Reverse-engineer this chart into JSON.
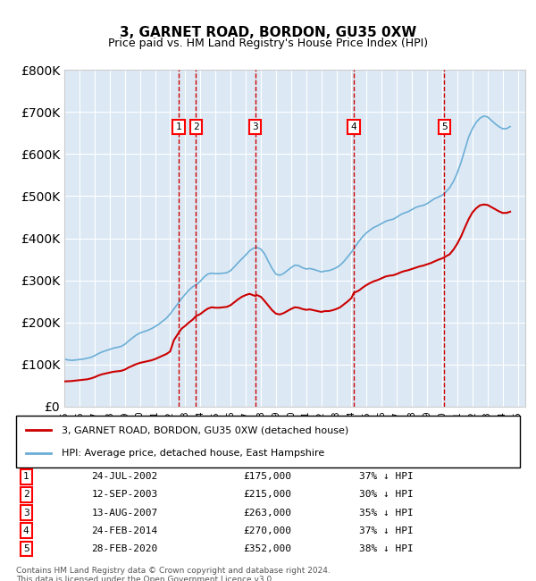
{
  "title": "3, GARNET ROAD, BORDON, GU35 0XW",
  "subtitle": "Price paid vs. HM Land Registry's House Price Index (HPI)",
  "ylabel_ticks": [
    "£0",
    "£100K",
    "£200K",
    "£300K",
    "£400K",
    "£500K",
    "£600K",
    "£700K",
    "£800K"
  ],
  "ytick_values": [
    0,
    100000,
    200000,
    300000,
    400000,
    500000,
    600000,
    700000,
    800000
  ],
  "ylim": [
    0,
    800000
  ],
  "xlim_start": 1995.0,
  "xlim_end": 2025.5,
  "background_color": "#dce9f5",
  "plot_bg": "#dce9f5",
  "hpi_color": "#6baed6",
  "price_color": "#cc0000",
  "vline_color": "#cc0000",
  "sales": [
    {
      "num": 1,
      "date": "24-JUL-2002",
      "year": 2002.56,
      "price": 175000,
      "label": "£175,000",
      "pct": "37% ↓ HPI"
    },
    {
      "num": 2,
      "date": "12-SEP-2003",
      "year": 2003.71,
      "price": 215000,
      "label": "£215,000",
      "pct": "30% ↓ HPI"
    },
    {
      "num": 3,
      "date": "13-AUG-2007",
      "year": 2007.62,
      "price": 263000,
      "label": "£263,000",
      "pct": "35% ↓ HPI"
    },
    {
      "num": 4,
      "date": "24-FEB-2014",
      "year": 2014.15,
      "price": 270000,
      "label": "£270,000",
      "pct": "37% ↓ HPI"
    },
    {
      "num": 5,
      "date": "28-FEB-2020",
      "year": 2020.15,
      "price": 352000,
      "label": "£352,000",
      "pct": "38% ↓ HPI"
    }
  ],
  "legend_red_label": "3, GARNET ROAD, BORDON, GU35 0XW (detached house)",
  "legend_blue_label": "HPI: Average price, detached house, East Hampshire",
  "footer": "Contains HM Land Registry data © Crown copyright and database right 2024.\nThis data is licensed under the Open Government Licence v3.0.",
  "hpi_data_x": [
    1995.0,
    1995.25,
    1995.5,
    1995.75,
    1996.0,
    1996.25,
    1996.5,
    1996.75,
    1997.0,
    1997.25,
    1997.5,
    1997.75,
    1998.0,
    1998.25,
    1998.5,
    1998.75,
    1999.0,
    1999.25,
    1999.5,
    1999.75,
    2000.0,
    2000.25,
    2000.5,
    2000.75,
    2001.0,
    2001.25,
    2001.5,
    2001.75,
    2002.0,
    2002.25,
    2002.5,
    2002.75,
    2003.0,
    2003.25,
    2003.5,
    2003.75,
    2004.0,
    2004.25,
    2004.5,
    2004.75,
    2005.0,
    2005.25,
    2005.5,
    2005.75,
    2006.0,
    2006.25,
    2006.5,
    2006.75,
    2007.0,
    2007.25,
    2007.5,
    2007.75,
    2008.0,
    2008.25,
    2008.5,
    2008.75,
    2009.0,
    2009.25,
    2009.5,
    2009.75,
    2010.0,
    2010.25,
    2010.5,
    2010.75,
    2011.0,
    2011.25,
    2011.5,
    2011.75,
    2012.0,
    2012.25,
    2012.5,
    2012.75,
    2013.0,
    2013.25,
    2013.5,
    2013.75,
    2014.0,
    2014.25,
    2014.5,
    2014.75,
    2015.0,
    2015.25,
    2015.5,
    2015.75,
    2016.0,
    2016.25,
    2016.5,
    2016.75,
    2017.0,
    2017.25,
    2017.5,
    2017.75,
    2018.0,
    2018.25,
    2018.5,
    2018.75,
    2019.0,
    2019.25,
    2019.5,
    2019.75,
    2020.0,
    2020.25,
    2020.5,
    2020.75,
    2021.0,
    2021.25,
    2021.5,
    2021.75,
    2022.0,
    2022.25,
    2022.5,
    2022.75,
    2023.0,
    2023.25,
    2023.5,
    2023.75,
    2024.0,
    2024.25,
    2024.5
  ],
  "hpi_data_y": [
    113000,
    111000,
    110000,
    111000,
    112000,
    113000,
    115000,
    117000,
    121000,
    126000,
    130000,
    133000,
    136000,
    139000,
    141000,
    143000,
    148000,
    156000,
    163000,
    170000,
    175000,
    178000,
    181000,
    185000,
    190000,
    196000,
    203000,
    210000,
    220000,
    232000,
    244000,
    256000,
    267000,
    277000,
    285000,
    290000,
    298000,
    308000,
    315000,
    317000,
    316000,
    316000,
    317000,
    318000,
    323000,
    332000,
    342000,
    351000,
    360000,
    370000,
    376000,
    378000,
    374000,
    363000,
    345000,
    328000,
    315000,
    312000,
    316000,
    323000,
    330000,
    336000,
    335000,
    330000,
    327000,
    328000,
    326000,
    323000,
    320000,
    322000,
    323000,
    326000,
    330000,
    336000,
    345000,
    356000,
    367000,
    380000,
    393000,
    404000,
    413000,
    420000,
    426000,
    430000,
    435000,
    440000,
    443000,
    445000,
    450000,
    456000,
    460000,
    463000,
    468000,
    473000,
    476000,
    478000,
    482000,
    488000,
    494000,
    498000,
    502000,
    510000,
    520000,
    535000,
    555000,
    580000,
    610000,
    640000,
    660000,
    675000,
    685000,
    690000,
    688000,
    680000,
    672000,
    665000,
    660000,
    660000,
    665000
  ],
  "price_data_x": [
    1995.0,
    1995.25,
    1995.5,
    1995.75,
    1996.0,
    1996.25,
    1996.5,
    1996.75,
    1997.0,
    1997.25,
    1997.5,
    1997.75,
    1998.0,
    1998.25,
    1998.5,
    1998.75,
    1999.0,
    1999.25,
    1999.5,
    1999.75,
    2000.0,
    2000.25,
    2000.5,
    2000.75,
    2001.0,
    2001.25,
    2001.5,
    2001.75,
    2002.0,
    2002.25,
    2002.56,
    2002.75,
    2003.0,
    2003.25,
    2003.5,
    2003.71,
    2004.0,
    2004.25,
    2004.5,
    2004.75,
    2005.0,
    2005.25,
    2005.5,
    2005.75,
    2006.0,
    2006.25,
    2006.5,
    2006.75,
    2007.0,
    2007.25,
    2007.62,
    2007.75,
    2008.0,
    2008.25,
    2008.5,
    2008.75,
    2009.0,
    2009.25,
    2009.5,
    2009.75,
    2010.0,
    2010.25,
    2010.5,
    2010.75,
    2011.0,
    2011.25,
    2011.5,
    2011.75,
    2012.0,
    2012.25,
    2012.5,
    2012.75,
    2013.0,
    2013.25,
    2013.5,
    2013.75,
    2014.0,
    2014.15,
    2014.5,
    2014.75,
    2015.0,
    2015.25,
    2015.5,
    2015.75,
    2016.0,
    2016.25,
    2016.5,
    2016.75,
    2017.0,
    2017.25,
    2017.5,
    2017.75,
    2018.0,
    2018.25,
    2018.5,
    2018.75,
    2019.0,
    2019.25,
    2019.5,
    2019.75,
    2020.0,
    2020.15,
    2020.5,
    2020.75,
    2021.0,
    2021.25,
    2021.5,
    2021.75,
    2022.0,
    2022.25,
    2022.5,
    2022.75,
    2023.0,
    2023.25,
    2023.5,
    2023.75,
    2024.0,
    2024.25,
    2024.5
  ],
  "price_data_y": [
    60000,
    60500,
    61000,
    62000,
    63000,
    64000,
    65000,
    67000,
    70000,
    74000,
    77000,
    79000,
    81000,
    83000,
    84000,
    85000,
    88000,
    93000,
    97000,
    101000,
    104000,
    106000,
    108000,
    110000,
    113000,
    117000,
    121000,
    125000,
    131000,
    158000,
    175000,
    185000,
    192000,
    200000,
    207000,
    215000,
    220000,
    227000,
    233000,
    236000,
    235000,
    235000,
    236000,
    237000,
    241000,
    248000,
    255000,
    261000,
    265000,
    268000,
    263000,
    265000,
    261000,
    251000,
    240000,
    229000,
    221000,
    219000,
    222000,
    227000,
    232000,
    236000,
    235000,
    232000,
    230000,
    231000,
    229000,
    227000,
    225000,
    227000,
    227000,
    229000,
    232000,
    236000,
    243000,
    250000,
    258000,
    270000,
    276000,
    283000,
    289000,
    294000,
    298000,
    301000,
    305000,
    309000,
    311000,
    312000,
    315000,
    319000,
    322000,
    324000,
    327000,
    330000,
    333000,
    335000,
    338000,
    341000,
    345000,
    349000,
    352000,
    355000,
    362000,
    373000,
    387000,
    404000,
    425000,
    445000,
    461000,
    471000,
    478000,
    480000,
    479000,
    474000,
    469000,
    464000,
    460000,
    460000,
    463000
  ]
}
